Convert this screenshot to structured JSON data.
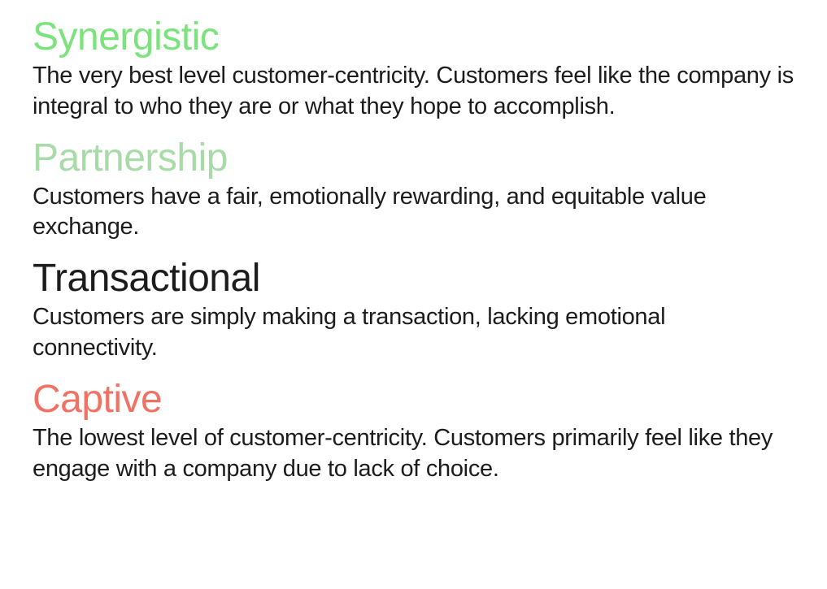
{
  "infographic": {
    "type": "text-hierarchy",
    "background_color": "#ffffff",
    "body_text_color": "#1c1c1c",
    "title_fontsize": 48,
    "description_fontsize": 29,
    "font_family": "Segoe UI, Helvetica Neue, Arial, sans-serif",
    "levels": [
      {
        "title": "Synergistic",
        "title_color": "#7be37b",
        "description": "The very best level customer-centricity. Customers feel like the company is integral to who they are or what they hope to accomplish."
      },
      {
        "title": "Partnership",
        "title_color": "#a8dba8",
        "description": "Customers have a fair, emotionally rewarding, and equitable value exchange."
      },
      {
        "title": "Transactional",
        "title_color": "#1c1c1c",
        "description": "Customers are simply making a transaction, lacking emotional connectivity."
      },
      {
        "title": "Captive",
        "title_color": "#f07265",
        "description": "The lowest level of customer-centricity. Customers primarily feel like they engage with a company due to lack of choice."
      }
    ]
  }
}
